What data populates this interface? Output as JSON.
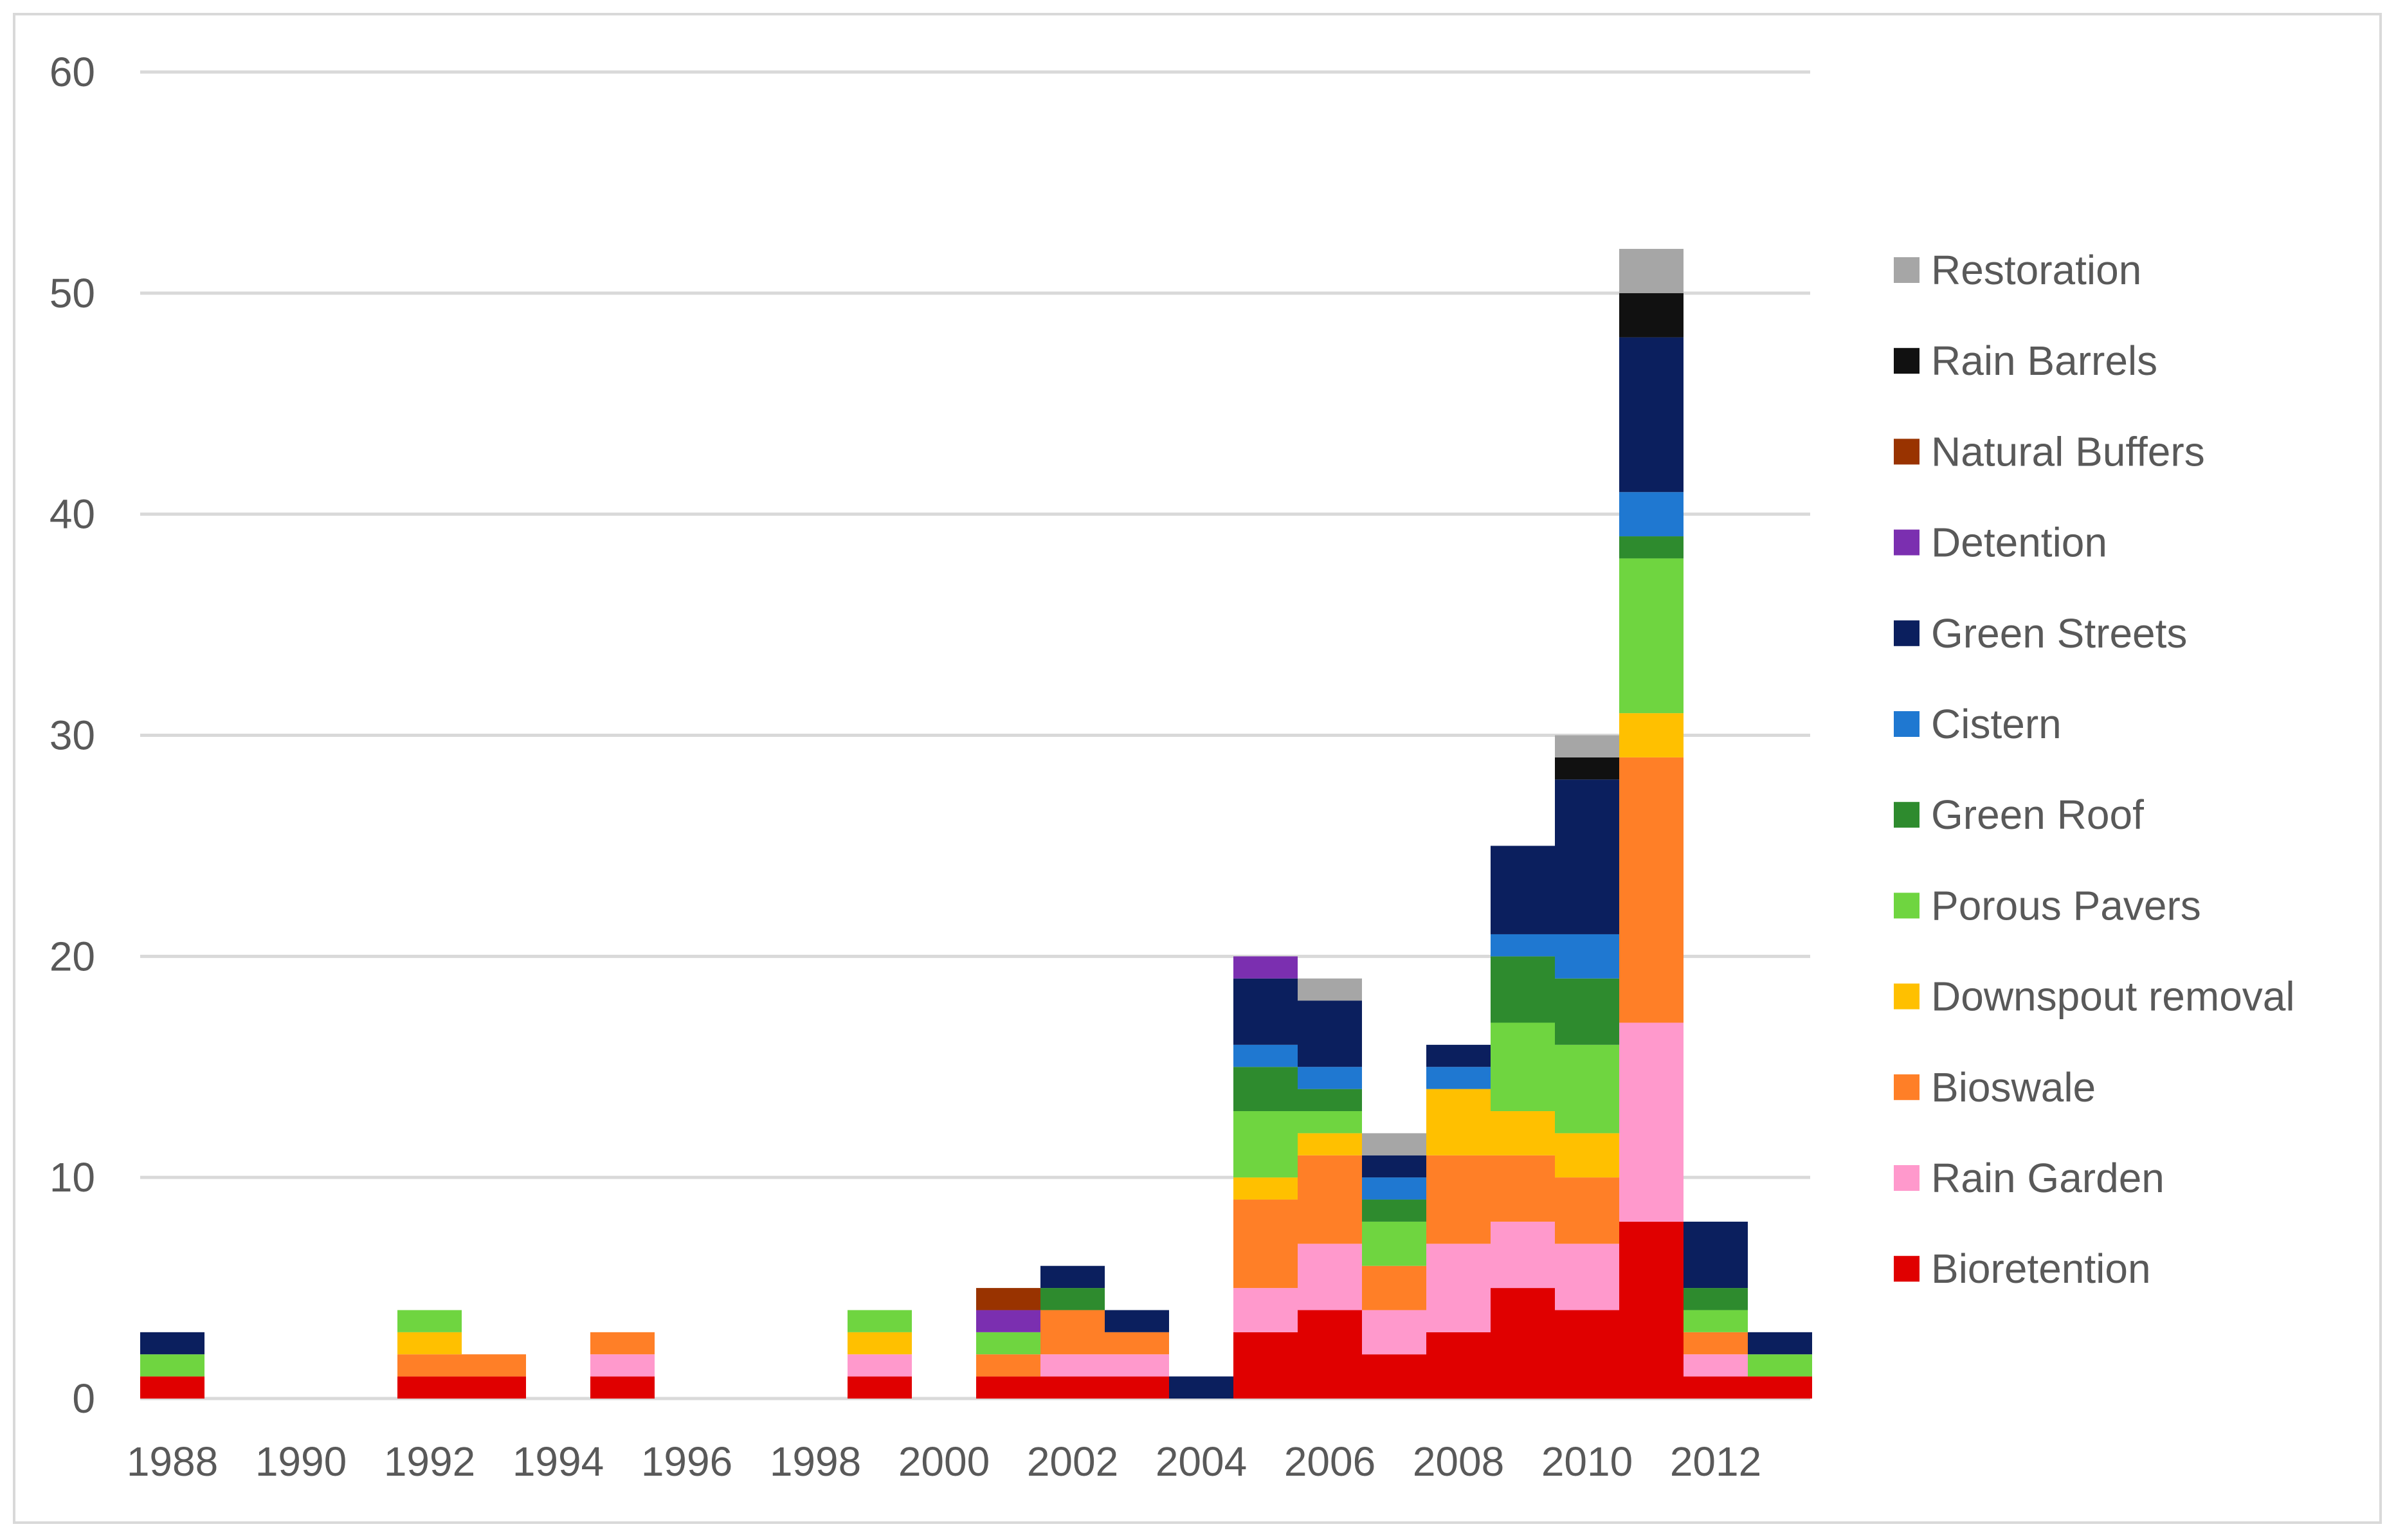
{
  "chart_data": {
    "type": "bar",
    "stacked": true,
    "title": "",
    "xlabel": "",
    "ylabel": "",
    "ylim": [
      0,
      60
    ],
    "yticks": [
      0,
      10,
      20,
      30,
      40,
      50,
      60
    ],
    "grid": true,
    "legend_position": "right",
    "categories": [
      1988,
      1989,
      1990,
      1991,
      1992,
      1993,
      1994,
      1995,
      1996,
      1997,
      1998,
      1999,
      2000,
      2001,
      2002,
      2003,
      2004,
      2005,
      2006,
      2007,
      2008,
      2009,
      2010,
      2011,
      2012,
      2013
    ],
    "x_tick_labels": [
      "1988",
      "1990",
      "1992",
      "1994",
      "1996",
      "1998",
      "2000",
      "2002",
      "2004",
      "2006",
      "2008",
      "2010",
      "2012"
    ],
    "series": [
      {
        "name": "Bioretention",
        "color": "#E00000",
        "values": [
          1,
          0,
          0,
          0,
          1,
          1,
          0,
          1,
          0,
          0,
          0,
          1,
          0,
          1,
          1,
          1,
          0,
          3,
          4,
          2,
          3,
          5,
          4,
          8,
          1,
          1
        ]
      },
      {
        "name": "Rain Garden",
        "color": "#FF99CC",
        "values": [
          0,
          0,
          0,
          0,
          0,
          0,
          0,
          1,
          0,
          0,
          0,
          1,
          0,
          0,
          1,
          1,
          0,
          2,
          3,
          2,
          4,
          3,
          3,
          9,
          1,
          0
        ]
      },
      {
        "name": "Bioswale",
        "color": "#FF7F27",
        "values": [
          0,
          0,
          0,
          0,
          1,
          1,
          0,
          1,
          0,
          0,
          0,
          0,
          0,
          1,
          2,
          1,
          0,
          4,
          4,
          2,
          4,
          3,
          3,
          12,
          1,
          0
        ]
      },
      {
        "name": "Downspout removal",
        "color": "#FFC000",
        "values": [
          0,
          0,
          0,
          0,
          1,
          0,
          0,
          0,
          0,
          0,
          0,
          1,
          0,
          0,
          0,
          0,
          0,
          1,
          1,
          0,
          3,
          2,
          2,
          2,
          0,
          0
        ]
      },
      {
        "name": "Porous Pavers",
        "color": "#6FD540",
        "values": [
          1,
          0,
          0,
          0,
          1,
          0,
          0,
          0,
          0,
          0,
          0,
          1,
          0,
          1,
          0,
          0,
          0,
          3,
          1,
          2,
          0,
          4,
          4,
          7,
          1,
          1
        ]
      },
      {
        "name": "Green Roof",
        "color": "#2E8B2E",
        "values": [
          0,
          0,
          0,
          0,
          0,
          0,
          0,
          0,
          0,
          0,
          0,
          0,
          0,
          0,
          1,
          0,
          0,
          2,
          1,
          1,
          0,
          3,
          3,
          1,
          1,
          0
        ]
      },
      {
        "name": "Cistern",
        "color": "#1F78D1",
        "values": [
          0,
          0,
          0,
          0,
          0,
          0,
          0,
          0,
          0,
          0,
          0,
          0,
          0,
          0,
          0,
          0,
          0,
          1,
          1,
          1,
          1,
          1,
          2,
          2,
          0,
          0
        ]
      },
      {
        "name": "Green Streets",
        "color": "#0B1F5E",
        "values": [
          1,
          0,
          0,
          0,
          0,
          0,
          0,
          0,
          0,
          0,
          0,
          0,
          0,
          0,
          1,
          1,
          1,
          3,
          3,
          1,
          1,
          4,
          7,
          7,
          3,
          1
        ]
      },
      {
        "name": "Detention",
        "color": "#7B2FB0",
        "values": [
          0,
          0,
          0,
          0,
          0,
          0,
          0,
          0,
          0,
          0,
          0,
          0,
          0,
          1,
          0,
          0,
          0,
          1,
          0,
          0,
          0,
          0,
          0,
          0,
          0,
          0
        ]
      },
      {
        "name": "Natural Buffers",
        "color": "#993300",
        "values": [
          0,
          0,
          0,
          0,
          0,
          0,
          0,
          0,
          0,
          0,
          0,
          0,
          0,
          1,
          0,
          0,
          0,
          0,
          0,
          0,
          0,
          0,
          0,
          0,
          0,
          0
        ]
      },
      {
        "name": "Rain Barrels",
        "color": "#111111",
        "values": [
          0,
          0,
          0,
          0,
          0,
          0,
          0,
          0,
          0,
          0,
          0,
          0,
          0,
          0,
          0,
          0,
          0,
          0,
          0,
          0,
          0,
          0,
          1,
          2,
          0,
          0
        ]
      },
      {
        "name": "Restoration",
        "color": "#A6A6A6",
        "values": [
          0,
          0,
          0,
          0,
          0,
          0,
          0,
          0,
          0,
          0,
          0,
          0,
          0,
          0,
          0,
          0,
          0,
          0,
          1,
          1,
          0,
          0,
          1,
          2,
          0,
          0
        ]
      }
    ]
  }
}
